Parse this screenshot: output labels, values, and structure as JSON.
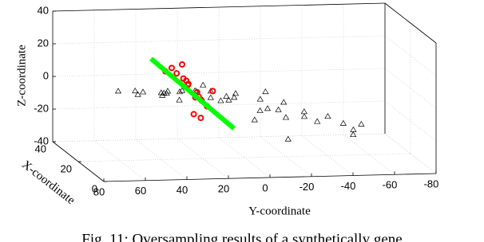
{
  "chart_data": {
    "type": "scatter3d",
    "xlabel": "X-coordinate",
    "ylabel": "Y-coordinate",
    "zlabel": "Z-coordinate",
    "caption": "Fig. 11: Oversampling results of a synthetically gene",
    "xlim": [
      0,
      40
    ],
    "ylim": [
      80,
      -80
    ],
    "zlim": [
      -40,
      40
    ],
    "xticks": [
      0,
      20,
      40
    ],
    "yticks": [
      80,
      60,
      40,
      20,
      0,
      -20,
      -40,
      -60,
      -80
    ],
    "zticks": [
      -40,
      -20,
      0,
      20,
      40
    ],
    "grid": true,
    "series": [
      {
        "marker": "triangle",
        "color": "#000000",
        "x": [
          5,
          10,
          15,
          20,
          25,
          30,
          35,
          8,
          12,
          18,
          22,
          28,
          32,
          38,
          3,
          14,
          26,
          34,
          6,
          16,
          24,
          30,
          36,
          10,
          20,
          28,
          4,
          12,
          22,
          32,
          18,
          26,
          8,
          30,
          14,
          24,
          36,
          2,
          16,
          28
        ],
        "y": [
          70,
          55,
          40,
          30,
          20,
          10,
          -5,
          60,
          45,
          25,
          15,
          0,
          -15,
          -30,
          50,
          35,
          5,
          -25,
          20,
          10,
          -10,
          -35,
          -50,
          -5,
          -20,
          -40,
          30,
          0,
          -30,
          -55,
          40,
          -60,
          -45,
          25,
          55,
          35,
          -20,
          -10,
          -50,
          15
        ],
        "z": [
          12,
          8,
          5,
          2,
          -2,
          -5,
          -10,
          10,
          6,
          3,
          -4,
          -8,
          -12,
          -18,
          10,
          0,
          -6,
          -20,
          4,
          -2,
          -14,
          -22,
          -26,
          -4,
          -16,
          -24,
          6,
          -12,
          -14,
          -28,
          2,
          -25,
          -20,
          -5,
          4,
          -2,
          -10,
          -18,
          -22,
          0
        ]
      },
      {
        "marker": "circle",
        "color": "#ff0000",
        "x": [
          20,
          20,
          21,
          19,
          20,
          22,
          18,
          20,
          21,
          20,
          19,
          20,
          22,
          20,
          21,
          20
        ],
        "y": [
          38,
          35,
          32,
          30,
          28,
          26,
          24,
          22,
          20,
          18,
          25,
          30,
          14,
          21,
          23,
          27
        ],
        "z": [
          14,
          16,
          12,
          10,
          8,
          4,
          2,
          -2,
          -5,
          -8,
          -12,
          18,
          0,
          -15,
          -3,
          6
        ]
      },
      {
        "marker": "line",
        "color": "#00ff00",
        "x": [
          20,
          20
        ],
        "y": [
          45,
          5
        ],
        "z": [
          22,
          -22
        ]
      }
    ]
  }
}
